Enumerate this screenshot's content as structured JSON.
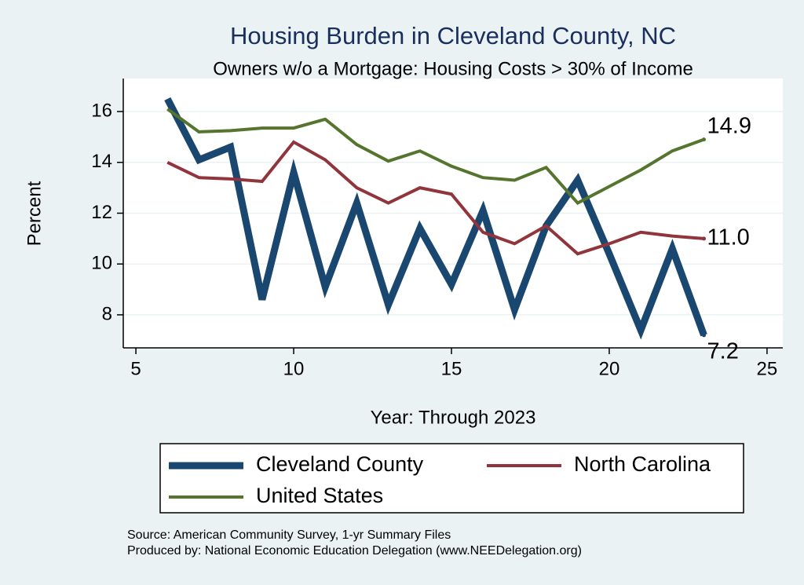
{
  "chart_data": {
    "type": "line",
    "title": "Housing Burden in Cleveland County, NC",
    "subtitle": "Owners w/o a Mortgage: Housing Costs > 30% of Income",
    "x_label": "Year: Through 2023",
    "y_label": "Percent",
    "x": [
      6,
      7,
      8,
      9,
      10,
      11,
      12,
      13,
      14,
      15,
      16,
      17,
      18,
      19,
      20,
      21,
      22,
      23
    ],
    "series": [
      {
        "name": "Cleveland County",
        "color": "#1a476f",
        "width": 9,
        "values": [
          16.5,
          14.1,
          14.6,
          8.6,
          13.6,
          9.1,
          12.4,
          8.4,
          11.4,
          9.2,
          12.1,
          8.2,
          11.5,
          13.3,
          10.4,
          7.4,
          10.6,
          7.2
        ],
        "value_labels": [
          null,
          null,
          null,
          null,
          null,
          null,
          null,
          null,
          null,
          null,
          null,
          null,
          null,
          null,
          null,
          null,
          null,
          "7.2"
        ]
      },
      {
        "name": "North Carolina",
        "color": "#90353b",
        "width": 4,
        "values": [
          14.0,
          13.4,
          13.35,
          13.25,
          14.8,
          14.1,
          13.0,
          12.4,
          13.0,
          12.75,
          11.25,
          10.8,
          11.5,
          10.4,
          10.8,
          11.25,
          11.1,
          11.0
        ],
        "value_labels": [
          null,
          null,
          null,
          null,
          null,
          null,
          null,
          null,
          null,
          null,
          null,
          null,
          null,
          null,
          null,
          null,
          null,
          "11.0"
        ]
      },
      {
        "name": "United States",
        "color": "#55752f",
        "width": 4,
        "values": [
          16.1,
          15.2,
          15.25,
          15.35,
          15.35,
          15.7,
          14.7,
          14.05,
          14.45,
          13.85,
          13.4,
          13.3,
          13.8,
          12.4,
          13.05,
          13.7,
          14.45,
          14.9
        ],
        "value_labels": [
          null,
          null,
          null,
          null,
          null,
          null,
          null,
          null,
          null,
          null,
          null,
          null,
          null,
          null,
          null,
          null,
          null,
          "14.9"
        ]
      }
    ],
    "xlim": [
      4.6,
      25.5
    ],
    "xticks": [
      5,
      10,
      15,
      20,
      25
    ],
    "ylim": [
      6.7,
      17.3
    ],
    "yticks": [
      8,
      10,
      12,
      14,
      16
    ],
    "grid": true,
    "notes": [
      "Source: American Community Survey, 1-yr Summary Files",
      "Produced by: National Economic Education Delegation (www.NEEDelegation.org)"
    ]
  }
}
